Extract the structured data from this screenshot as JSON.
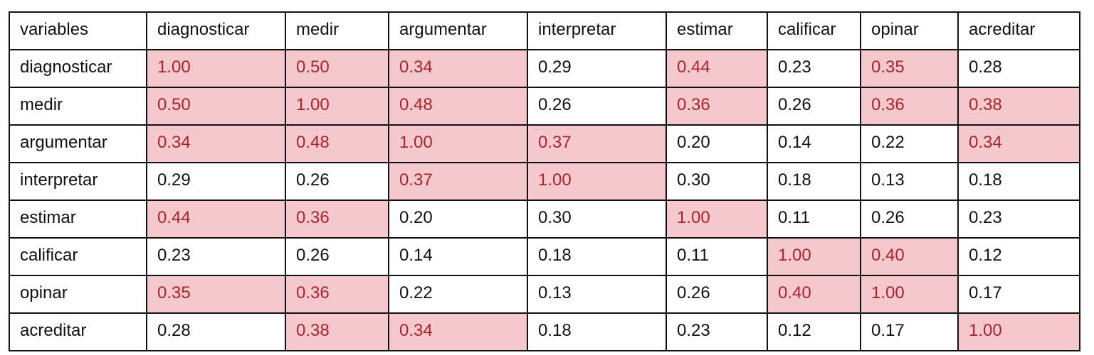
{
  "table": {
    "header": [
      "variables",
      "diagnosticar",
      "medir",
      "argumentar",
      "interpretar",
      "estimar",
      "calificar",
      "opinar",
      "acreditar"
    ],
    "rows": [
      [
        "diagnosticar",
        "1.00",
        "0.50",
        "0.34",
        "0.29",
        "0.44",
        "0.23",
        "0.35",
        "0.28"
      ],
      [
        "medir",
        "0.50",
        "1.00",
        "0.48",
        "0.26",
        "0.36",
        "0.26",
        "0.36",
        "0.38"
      ],
      [
        "argumentar",
        "0.34",
        "0.48",
        "1.00",
        "0.37",
        "0.20",
        "0.14",
        "0.22",
        "0.34"
      ],
      [
        "interpretar",
        "0.29",
        "0.26",
        "0.37",
        "1.00",
        "0.30",
        "0.18",
        "0.13",
        "0.18"
      ],
      [
        "estimar",
        "0.44",
        "0.36",
        "0.20",
        "0.30",
        "1.00",
        "0.11",
        "0.26",
        "0.23"
      ],
      [
        "calificar",
        "0.23",
        "0.26",
        "0.14",
        "0.18",
        "0.11",
        "1.00",
        "0.40",
        "0.12"
      ],
      [
        "opinar",
        "0.35",
        "0.36",
        "0.22",
        "0.13",
        "0.26",
        "0.40",
        "1.00",
        "0.17"
      ],
      [
        "acreditar",
        "0.28",
        "0.38",
        "0.34",
        "0.18",
        "0.23",
        "0.12",
        "0.17",
        "1.00"
      ]
    ],
    "highlighted": [
      [
        true,
        true,
        true,
        false,
        true,
        false,
        true,
        false
      ],
      [
        true,
        true,
        true,
        false,
        true,
        false,
        true,
        true
      ],
      [
        true,
        true,
        true,
        true,
        false,
        false,
        false,
        true
      ],
      [
        false,
        false,
        true,
        true,
        false,
        false,
        false,
        false
      ],
      [
        true,
        true,
        false,
        false,
        true,
        false,
        false,
        false
      ],
      [
        false,
        false,
        false,
        false,
        false,
        true,
        true,
        false
      ],
      [
        true,
        true,
        false,
        false,
        false,
        true,
        true,
        false
      ],
      [
        false,
        true,
        true,
        false,
        false,
        false,
        false,
        true
      ]
    ],
    "highlight_color": "#f5c8cd",
    "highlight_text_color": "#a8262b"
  }
}
